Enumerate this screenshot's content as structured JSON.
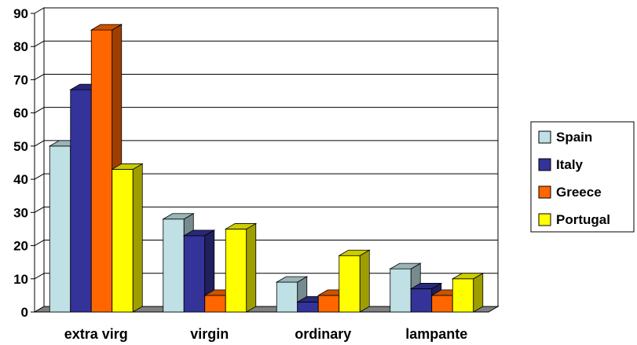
{
  "chart_data": {
    "type": "bar",
    "style": "3d-clustered-column",
    "categories": [
      "extra virg",
      "virgin",
      "ordinary",
      "lampante"
    ],
    "series": [
      {
        "name": "Spain",
        "color": "#bfe0e4",
        "values": [
          50,
          28,
          9,
          13
        ]
      },
      {
        "name": "Italy",
        "color": "#333399",
        "values": [
          67,
          23,
          3,
          7
        ]
      },
      {
        "name": "Greece",
        "color": "#ff6600",
        "values": [
          85,
          5,
          5,
          5
        ]
      },
      {
        "name": "Portugal",
        "color": "#ffff00",
        "values": [
          43,
          25,
          17,
          10
        ]
      }
    ],
    "ylim": [
      0,
      90
    ],
    "yticks": [
      0,
      10,
      20,
      30,
      40,
      50,
      60,
      70,
      80,
      90
    ],
    "grid": true,
    "legend": "right",
    "title": "",
    "xlabel": "",
    "ylabel": ""
  }
}
